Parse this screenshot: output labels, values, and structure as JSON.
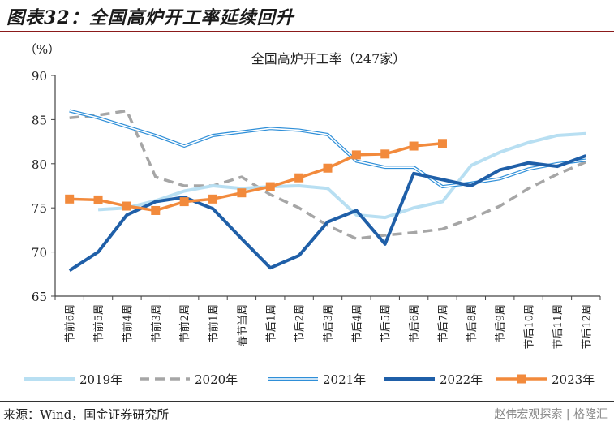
{
  "figure_title": "图表32：全国高炉开工率延续回升",
  "source_note": "来源：Wind，国金证券研究所",
  "watermark": "赵伟宏观探索 | 格隆汇",
  "chart_data": {
    "type": "line",
    "title": "全国高炉开工率（247家）",
    "ylabel": "（%）",
    "ylim": [
      65,
      90
    ],
    "yticks": [
      65,
      70,
      75,
      80,
      85,
      90
    ],
    "grid": false,
    "legend_position": "bottom",
    "categories": [
      "节前6周",
      "节前5周",
      "节前4周",
      "节前3周",
      "节前2周",
      "节前1周",
      "春节当周",
      "节后1周",
      "节后2周",
      "节后3周",
      "节后4周",
      "节后5周",
      "节后6周",
      "节后7周",
      "节后8周",
      "节后9周",
      "节后10周",
      "节后11周",
      "节后12周"
    ],
    "series": [
      {
        "name": "2019年",
        "color": "#b8dff2",
        "style": "solid-thick",
        "values": [
          null,
          74.8,
          75.0,
          75.8,
          76.9,
          77.5,
          77.2,
          77.4,
          77.5,
          77.2,
          74.2,
          73.9,
          75.0,
          75.7,
          79.8,
          81.3,
          82.4,
          83.2,
          83.4
        ]
      },
      {
        "name": "2020年",
        "color": "#a6a6a6",
        "style": "dashed",
        "values": [
          85.2,
          85.5,
          86.0,
          78.5,
          77.5,
          77.5,
          78.5,
          76.5,
          75.0,
          73.0,
          71.5,
          71.9,
          72.2,
          72.6,
          73.8,
          75.2,
          77.2,
          78.8,
          80.2
        ]
      },
      {
        "name": "2021年",
        "color": "#2f8fd8",
        "style": "double",
        "values": [
          86.0,
          85.2,
          84.2,
          83.2,
          82.0,
          83.2,
          83.6,
          84.0,
          83.8,
          83.3,
          80.3,
          79.6,
          79.6,
          77.4,
          77.8,
          78.3,
          79.4,
          80.0,
          80.4
        ]
      },
      {
        "name": "2022年",
        "color": "#1f5fa8",
        "style": "solid-thick",
        "values": [
          67.9,
          70.0,
          74.2,
          75.7,
          76.2,
          74.9,
          71.5,
          68.2,
          69.6,
          73.4,
          74.7,
          70.9,
          78.9,
          78.2,
          77.5,
          79.3,
          80.1,
          79.7,
          80.9
        ]
      },
      {
        "name": "2023年",
        "color": "#f28a3c",
        "style": "marker",
        "values": [
          76.0,
          75.9,
          75.2,
          74.7,
          75.7,
          76.0,
          76.7,
          77.4,
          78.4,
          79.5,
          81.0,
          81.1,
          82.0,
          82.3,
          null,
          null,
          null,
          null,
          null
        ]
      }
    ]
  }
}
